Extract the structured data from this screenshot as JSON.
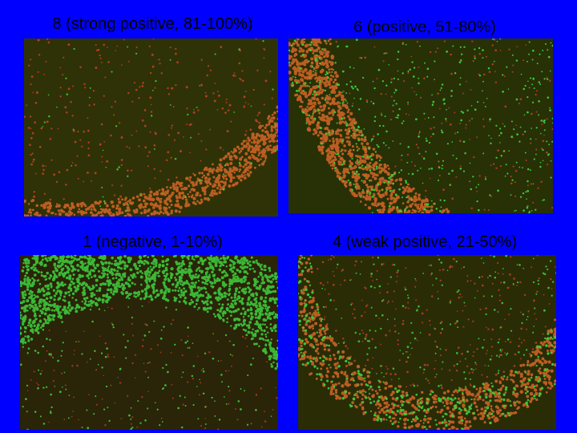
{
  "slide": {
    "background": "#0000ff",
    "panels": [
      {
        "caption": "8 (strong positive, 81-100%)",
        "image": "micrograph of cell culture with mostly red/orange cells and scattered green cells; dense orange band along lower-right curved edge",
        "cell_colors": {
          "red": "#d8462a",
          "green": "#3fd23f"
        }
      },
      {
        "caption": "6 (positive, 51-80%)",
        "image": "micrograph with dense orange-red band along left curved edge and many green cells scattered across the field",
        "cell_colors": {
          "red": "#d8462a",
          "green": "#3fd23f"
        }
      },
      {
        "caption": "1 (negative, 1-10%)",
        "image": "micrograph dominated by dense bright green cell band across top and right edges, few red cells",
        "cell_colors": {
          "red": "#d8462a",
          "green": "#3fd23f"
        }
      },
      {
        "caption": "4 (weak positive, 21-50%)",
        "image": "micrograph with curved orange-red band at bottom mixed with green cells; scattered red and green cells in the field",
        "cell_colors": {
          "red": "#d8462a",
          "green": "#3fd23f"
        }
      }
    ]
  }
}
